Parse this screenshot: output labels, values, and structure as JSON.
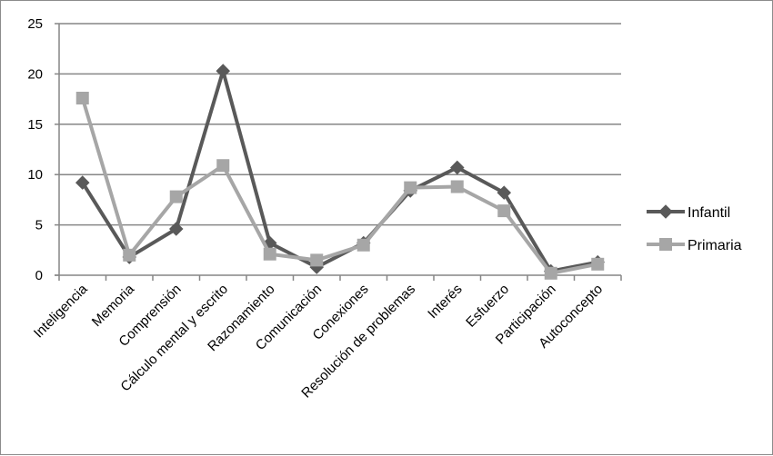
{
  "chart_data": {
    "type": "line",
    "title": "",
    "xlabel": "",
    "ylabel": "",
    "ylim": [
      0,
      25
    ],
    "yticks": [
      0,
      5,
      10,
      15,
      20,
      25
    ],
    "grid": true,
    "legend_position": "right",
    "categories": [
      "Inteligencia",
      "Memoria",
      "Comprensión",
      "Cálculo mental y escrito",
      "Razonamiento",
      "Comunicación",
      "Conexiones",
      "Resolución  de problemas",
      "Interés",
      "Esfuerzo",
      "Participación",
      "Autoconcepto"
    ],
    "series": [
      {
        "name": "Infantil",
        "marker": "diamond",
        "color": "#595959",
        "values": [
          9.2,
          1.8,
          4.6,
          20.3,
          3.2,
          0.8,
          3.2,
          8.4,
          10.7,
          8.2,
          0.4,
          1.3
        ]
      },
      {
        "name": "Primaria",
        "marker": "square",
        "color": "#a6a6a6",
        "values": [
          17.6,
          2.0,
          7.8,
          10.9,
          2.1,
          1.5,
          3.0,
          8.7,
          8.8,
          6.4,
          0.2,
          1.1
        ]
      }
    ]
  },
  "legend": {
    "items": [
      {
        "label": "Infantil"
      },
      {
        "label": "Primaria"
      }
    ]
  },
  "axis": {
    "y_tick_labels": [
      "0",
      "5",
      "10",
      "15",
      "20",
      "25"
    ]
  },
  "colors": {
    "gridline": "#868686",
    "axis": "#868686",
    "border": "#8c8c8c"
  }
}
